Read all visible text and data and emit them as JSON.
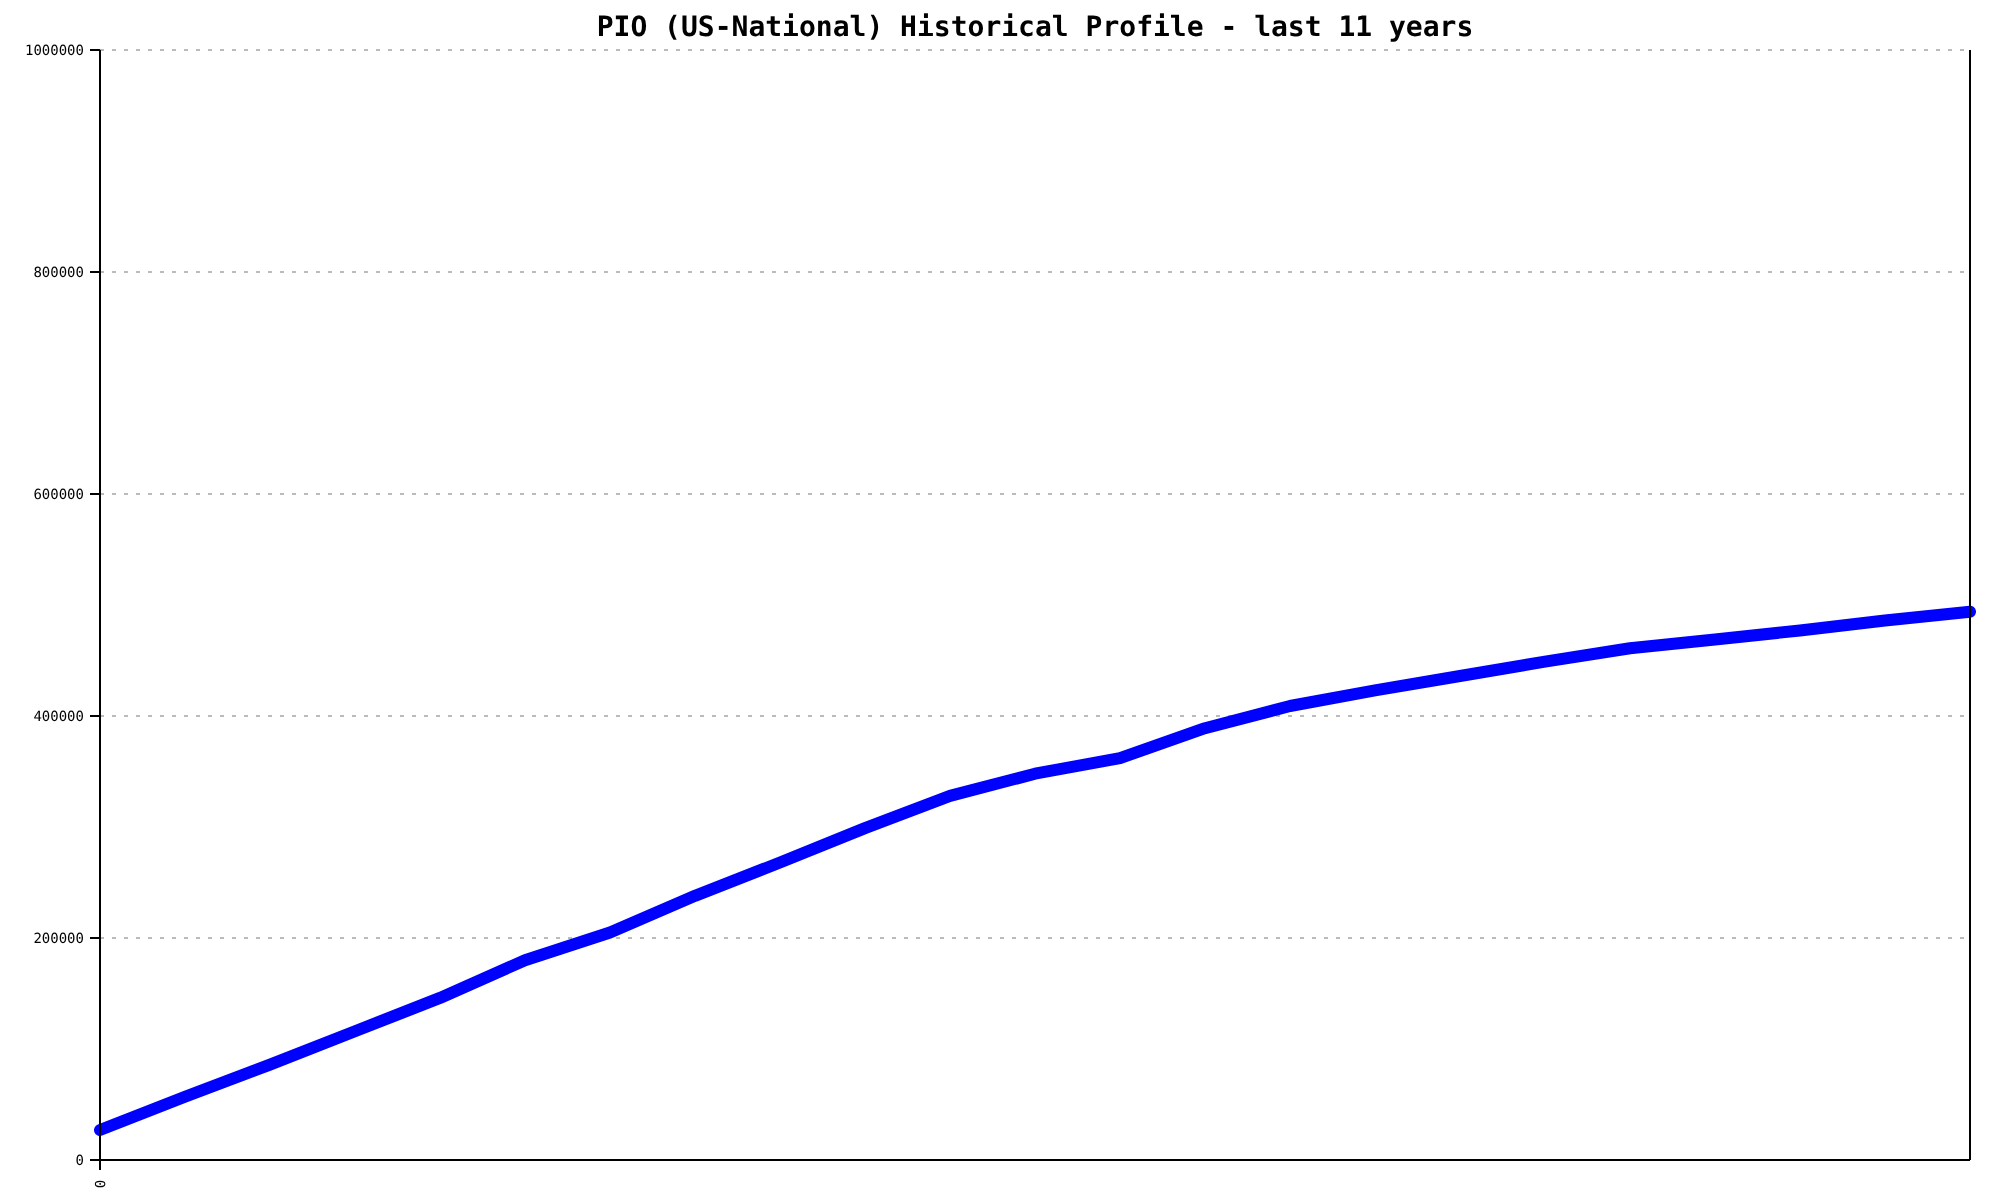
{
  "chart_data": {
    "type": "line",
    "title": "PIO (US-National) Historical Profile - last 11 years",
    "categories": [
      "0",
      null,
      null,
      null,
      null,
      null,
      null,
      null,
      null,
      null,
      null,
      null,
      null,
      null,
      null,
      null,
      null,
      null,
      null,
      null,
      null,
      null,
      null
    ],
    "series": [
      {
        "color": "#0000ff",
        "values": [
          27000,
          57000,
          86000,
          116000,
          146000,
          180000,
          205000,
          238000,
          268000,
          299000,
          328000,
          348000,
          362000,
          389000,
          409000,
          423000,
          436000,
          449000,
          461000,
          469000,
          477000,
          486000,
          494000
        ]
      }
    ],
    "ylim": [
      0,
      1000000
    ],
    "yticks": [
      0,
      200000,
      400000,
      600000,
      800000,
      1000000
    ],
    "grid": "y",
    "marker": "none",
    "line_style": "solid"
  }
}
